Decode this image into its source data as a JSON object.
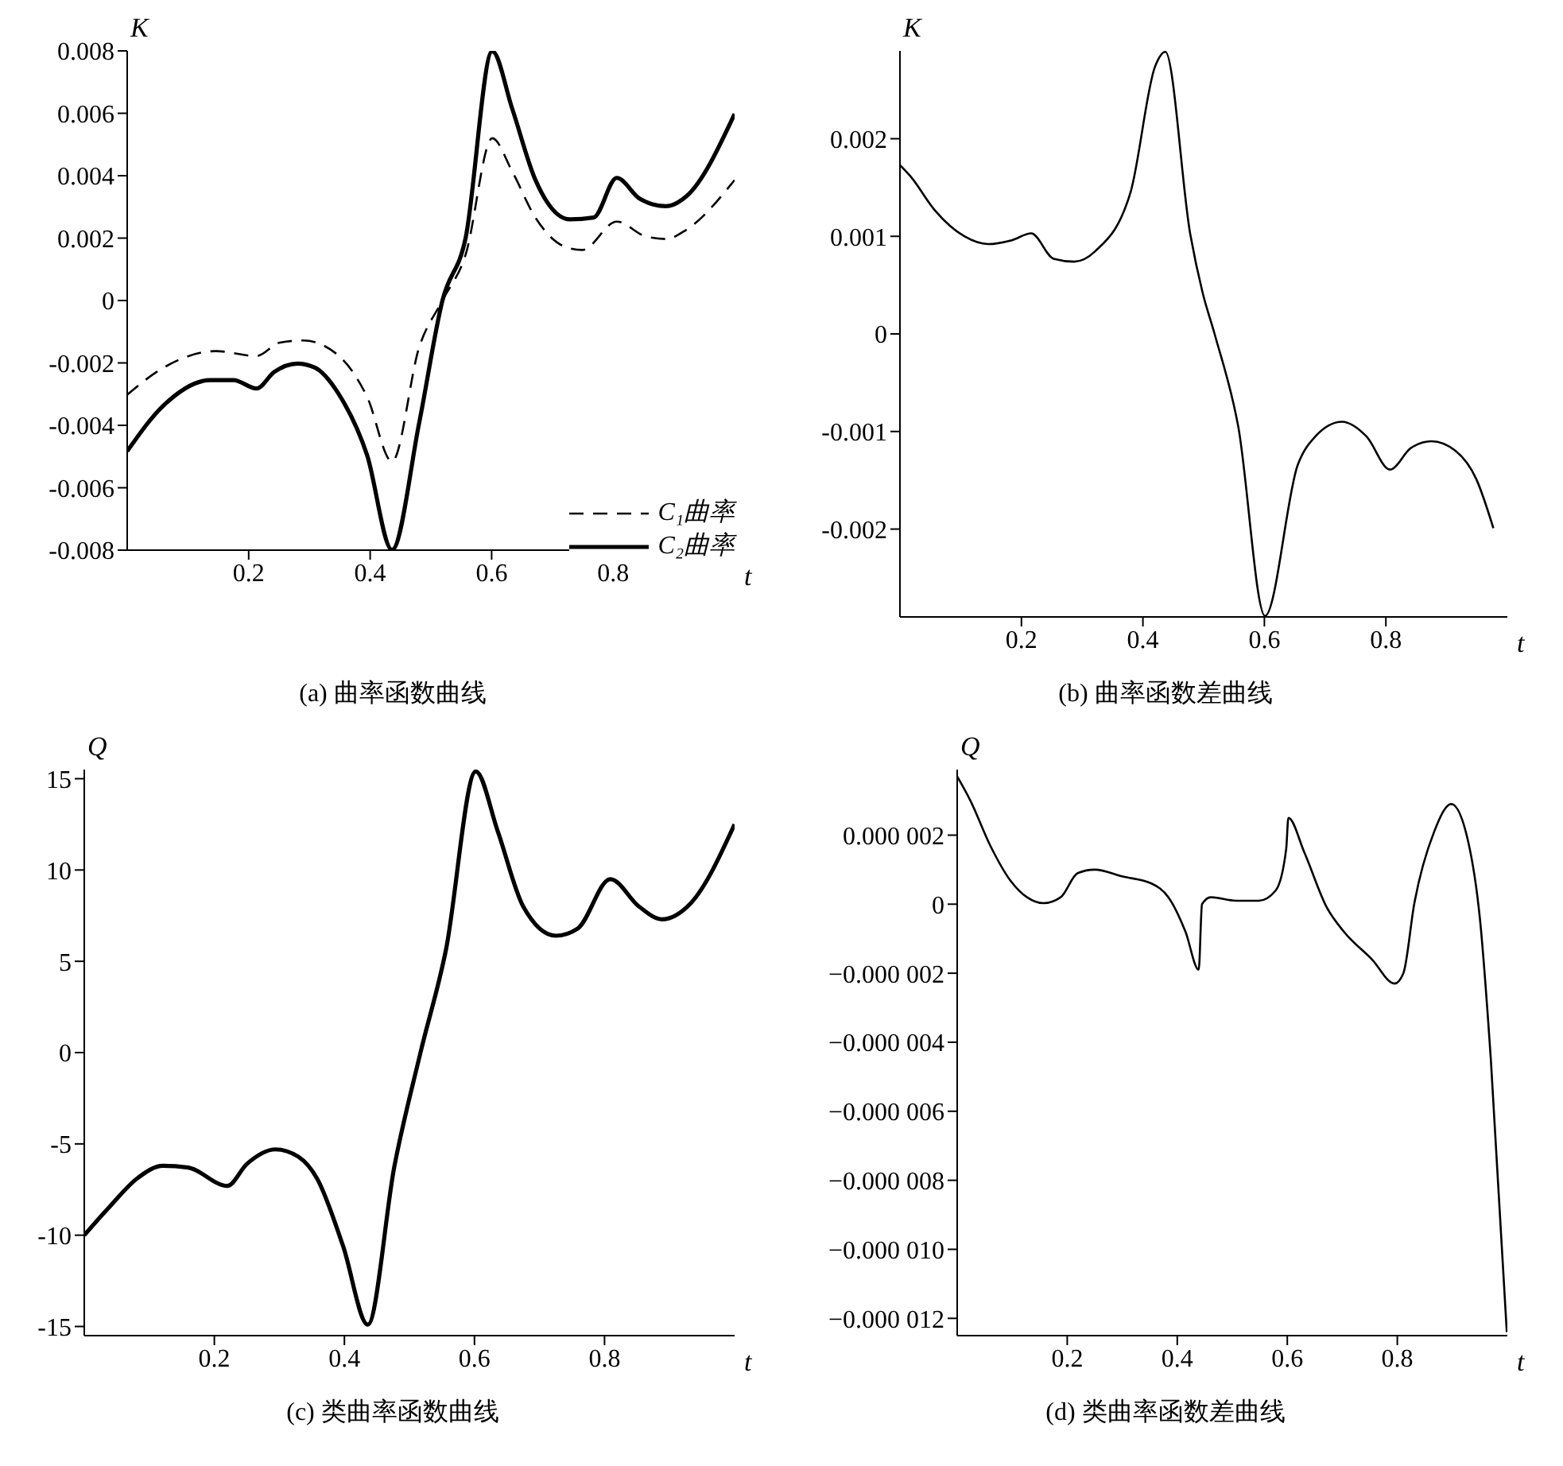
{
  "chart_data": [
    {
      "type": "line",
      "title": "(a) 曲率函数曲线",
      "xlabel": "t",
      "ylabel": "K",
      "xlim": [
        0,
        1
      ],
      "xticks": [
        0.2,
        0.4,
        0.6,
        0.8
      ],
      "ylim": [
        -0.008,
        0.008
      ],
      "yticks": [
        -0.008,
        -0.006,
        -0.004,
        -0.002,
        0,
        0.002,
        0.004,
        0.006,
        0.008
      ],
      "legend": "bottom right",
      "series": [
        {
          "name": "C₁曲率",
          "color": "#000000",
          "line_style": "dashed",
          "x": [
            0,
            0.06,
            0.146,
            0.213,
            0.251,
            0.29,
            0.347,
            0.395,
            0.436,
            0.481,
            0.519,
            0.557,
            0.601,
            0.634,
            0.672,
            0.72,
            0.749,
            0.806,
            0.853,
            0.887,
            0.92,
            1
          ],
          "values": [
            -0.00302,
            -0.00215,
            -0.00162,
            -0.00178,
            -0.00135,
            -0.00128,
            -0.00175,
            -0.00309,
            -0.00516,
            -0.00148,
            0,
            0.00146,
            0.0052,
            0.00413,
            0.00266,
            0.00173,
            0.00162,
            0.00253,
            0.00206,
            0.00197,
            0.00226,
            0.00386
          ]
        },
        {
          "name": "C₂曲率",
          "color": "#000000",
          "line_style": "solid",
          "x": [
            0,
            0.06,
            0.137,
            0.175,
            0.213,
            0.242,
            0.28,
            0.309,
            0.347,
            0.395,
            0.436,
            0.481,
            0.519,
            0.557,
            0.601,
            0.634,
            0.672,
            0.729,
            0.768,
            0.806,
            0.844,
            0.887,
            0.92,
            1
          ],
          "values": [
            -0.00483,
            -0.00336,
            -0.00255,
            -0.00255,
            -0.00282,
            -0.00229,
            -0.00202,
            -0.00215,
            -0.00296,
            -0.00496,
            -0.00799,
            -0.00389,
            0,
            0.00199,
            0.00799,
            0.00614,
            0.00387,
            0.0026,
            0.00266,
            0.00393,
            0.00326,
            0.00302,
            0.00333,
            0.00598
          ]
        }
      ]
    },
    {
      "type": "line",
      "title": "(b) 曲率函数差曲线",
      "xlabel": "t",
      "ylabel": "K",
      "xlim": [
        0,
        1
      ],
      "xticks": [
        0.2,
        0.4,
        0.6,
        0.8
      ],
      "ylim": [
        -0.0029,
        0.0029
      ],
      "yticks": [
        -0.002,
        -0.001,
        0,
        0.001,
        0.002
      ],
      "series": [
        {
          "color": "#000000",
          "line_style": "solid",
          "x": [
            0,
            0.018,
            0.057,
            0.106,
            0.145,
            0.184,
            0.216,
            0.253,
            0.287,
            0.322,
            0.38,
            0.42,
            0.437,
            0.478,
            0.498,
            0.518,
            0.557,
            0.601,
            0.655,
            0.684,
            0.728,
            0.768,
            0.807,
            0.841,
            0.875,
            0.915,
            0.949,
            0.977
          ],
          "values": [
            0.00173,
            0.00161,
            0.00127,
            0.001,
            0.00092,
            0.00096,
            0.00103,
            0.00077,
            0.00074,
            0.00085,
            0.00146,
            0.00274,
            0.00289,
            0.00102,
            0.00043,
            0,
            -0.00095,
            -0.00289,
            -0.00134,
            -0.00105,
            -0.0009,
            -0.00105,
            -0.00139,
            -0.00117,
            -0.0011,
            -0.0012,
            -0.00149,
            -0.00199
          ]
        }
      ]
    },
    {
      "type": "line",
      "title": "(c) 类曲率函数曲线",
      "xlabel": "t",
      "ylabel": "Q",
      "xlim": [
        0,
        1
      ],
      "xticks": [
        0.2,
        0.4,
        0.6,
        0.8
      ],
      "ylim": [
        -15.5,
        15.5
      ],
      "yticks": [
        -15,
        -10,
        -5,
        0,
        5,
        10,
        15
      ],
      "series": [
        {
          "color": "#000000",
          "line_style": "solid",
          "x": [
            0,
            0.04,
            0.081,
            0.121,
            0.16,
            0.22,
            0.25,
            0.294,
            0.329,
            0.358,
            0.398,
            0.436,
            0.477,
            0.517,
            0.556,
            0.602,
            0.636,
            0.675,
            0.725,
            0.759,
            0.809,
            0.853,
            0.888,
            0.933,
            1
          ],
          "values": [
            -10,
            -8.4,
            -6.9,
            -6.2,
            -6.3,
            -7.3,
            -6.1,
            -5.3,
            -5.7,
            -6.9,
            -10.6,
            -14.9,
            -6.2,
            0,
            5.6,
            15.4,
            12.1,
            8,
            6.4,
            6.8,
            9.5,
            8,
            7.3,
            8.2,
            12.5
          ]
        }
      ]
    },
    {
      "type": "line",
      "title": "(d) 类曲率函数差曲线",
      "xlabel": "t",
      "ylabel": "Q",
      "xlim": [
        0,
        1
      ],
      "xticks": [
        0.2,
        0.4,
        0.6,
        0.8
      ],
      "ylim": [
        -1.25e-05,
        3.9e-06
      ],
      "yticks": [
        {
          "value": -1.2e-05,
          "label": "−0.000 012"
        },
        {
          "value": -1e-05,
          "label": "−0.000 010"
        },
        {
          "value": -8e-06,
          "label": "−0.000 008"
        },
        {
          "value": -6e-06,
          "label": "−0.000 006"
        },
        {
          "value": -4e-06,
          "label": "−0.000 004"
        },
        {
          "value": -2e-06,
          "label": "−0.000 002"
        },
        0,
        {
          "value": 2e-06,
          "label": "0.000 002"
        }
      ],
      "series": [
        {
          "color": "#000000",
          "line_style": "solid",
          "x": [
            0,
            0.024,
            0.06,
            0.096,
            0.127,
            0.157,
            0.188,
            0.219,
            0.25,
            0.301,
            0.353,
            0.384,
            0.415,
            0.439,
            0.445,
            0.461,
            0.507,
            0.548,
            0.579,
            0.598,
            0.602,
            0.631,
            0.672,
            0.703,
            0.754,
            0.795,
            0.811,
            0.831,
            0.867,
            0.898,
            0.929,
            0.95,
            0.97,
            0.999
          ],
          "values": [
            3.7e-06,
            3e-06,
            1.7e-06,
            7e-07,
            2e-07,
            3e-08,
            2e-07,
            9e-07,
            1e-06,
            8e-07,
            6e-07,
            2e-07,
            -8e-07,
            -1.9e-06,
            0,
            2e-07,
            1e-07,
            1e-07,
            4e-07,
            1.6e-06,
            2.5e-06,
            1.5e-06,
            -1e-07,
            -8e-07,
            -1.6e-06,
            -2.3e-06,
            -2e-06,
            3e-08,
            2.1e-06,
            2.9e-06,
            1.8e-06,
            -4e-07,
            -4.5e-06,
            -1.24e-05
          ]
        }
      ]
    }
  ]
}
